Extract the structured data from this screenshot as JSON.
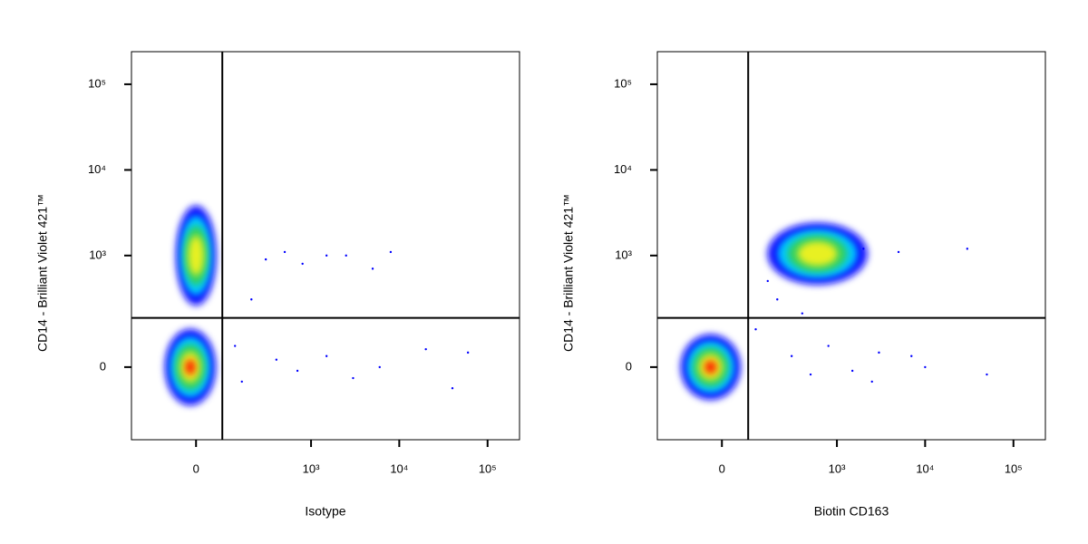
{
  "chart_data": [
    {
      "type": "scatter",
      "x_label": "Isotype",
      "y_label": "CD14 - Brilliant Violet 421™",
      "xlim": [
        -260,
        230000
      ],
      "ylim": [
        -345,
        240000
      ],
      "xticks": [
        0,
        {
          "value": 1000,
          "label": "10³"
        },
        {
          "value": 10000,
          "label": "10⁴"
        },
        {
          "value": 100000,
          "label": "10⁵"
        }
      ],
      "yticks": [
        0,
        {
          "value": 1000,
          "label": "10³"
        },
        {
          "value": 10000,
          "label": "10⁴"
        },
        {
          "value": 100000,
          "label": "10⁵"
        }
      ],
      "gate_x": 74,
      "gate_y": 174,
      "color": "#0000ff",
      "populations": {
        "x": [
          0,
          -15
        ],
        "y": [
          1000,
          0
        ]
      },
      "points": {
        "x": [
          300,
          500,
          800,
          1500,
          2500,
          5000,
          8000,
          200,
          400,
          700,
          1500,
          3000,
          6000,
          20000,
          40000,
          60000,
          120,
          150
        ],
        "y": [
          900,
          1100,
          800,
          1000,
          1000,
          700,
          1100,
          300,
          20,
          -10,
          30,
          -30,
          0,
          50,
          -60,
          40,
          60,
          -40
        ]
      }
    },
    {
      "type": "scatter",
      "x_label": "Biotin CD163",
      "y_label": "CD14 - Brilliant Violet 421™",
      "xlim": [
        -260,
        230000
      ],
      "ylim": [
        -345,
        240000
      ],
      "xticks": [
        0,
        {
          "value": 1000,
          "label": "10³"
        },
        {
          "value": 10000,
          "label": "10⁴"
        },
        {
          "value": 100000,
          "label": "10⁵"
        }
      ],
      "yticks": [
        0,
        {
          "value": 1000,
          "label": "10³"
        },
        {
          "value": 10000,
          "label": "10⁴"
        },
        {
          "value": 100000,
          "label": "10⁵"
        }
      ],
      "gate_x": 74,
      "gate_y": 174,
      "color": "#0000ff",
      "populations": {
        "x": [
          -30,
          600
        ],
        "y": [
          0,
          1050
        ]
      },
      "points": {
        "x": [
          2000,
          5000,
          30000,
          300,
          500,
          800,
          1500,
          3000,
          10000,
          50000,
          200,
          150,
          100,
          400,
          2500,
          7000
        ],
        "y": [
          1200,
          1100,
          1200,
          30,
          -20,
          60,
          -10,
          40,
          0,
          -20,
          300,
          500,
          120,
          200,
          -40,
          30
        ]
      }
    }
  ]
}
